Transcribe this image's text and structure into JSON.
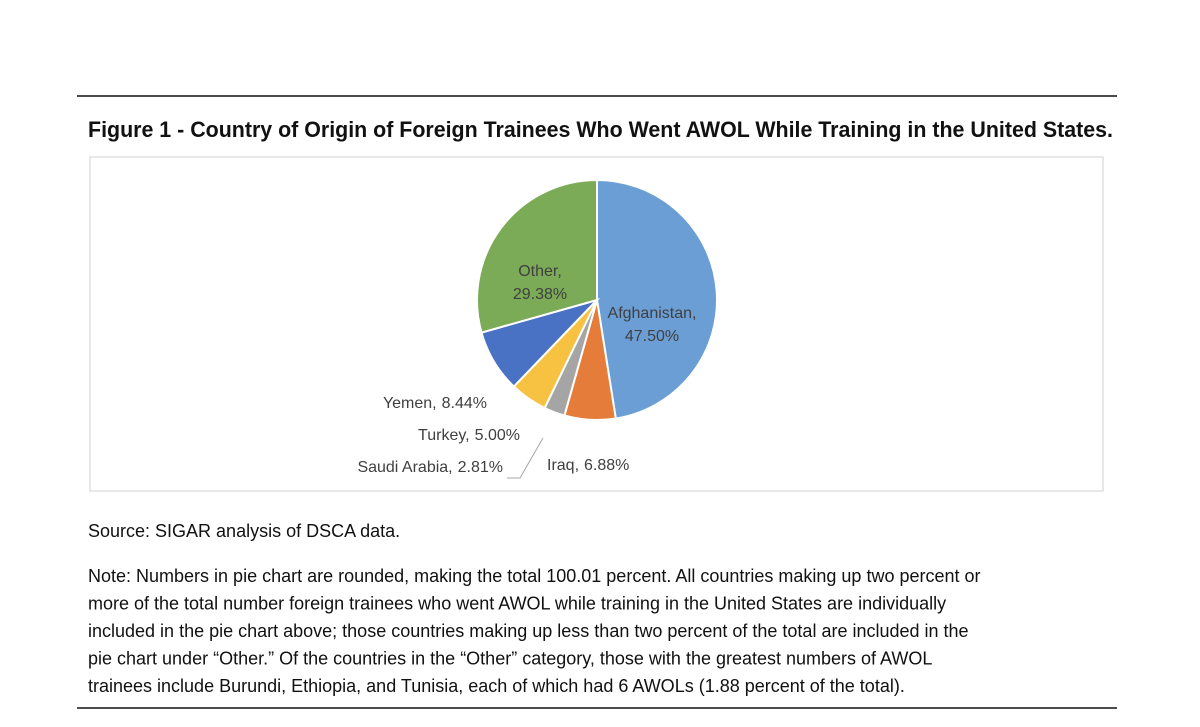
{
  "document": {
    "figure_title": "Figure 1 - Country of Origin of Foreign Trainees Who Went AWOL While Training in the United States.",
    "source": "Source: SIGAR analysis of DSCA data.",
    "note_lines": [
      "Note: Numbers in pie chart are rounded, making the total 100.01 percent. All countries making up two percent or",
      "more of the total number foreign trainees who went AWOL while training in the United States are individually",
      "included in the pie chart above; those countries making up less than two percent of the total are included in the",
      "pie chart under “Other.” Of the countries in the “Other” category, those with the greatest numbers of AWOL",
      "trainees include Burundi, Ethiopia, and Tunisia, each of which had 6 AWOLs (1.88 percent of the total)."
    ]
  },
  "chart_data": {
    "type": "pie",
    "label_separator": ",",
    "categories": [
      "Afghanistan",
      "Iraq",
      "Saudi Arabia",
      "Turkey",
      "Yemen",
      "Other"
    ],
    "values": [
      47.5,
      6.88,
      2.81,
      5.0,
      8.44,
      29.38
    ],
    "value_labels": [
      "47.50%",
      "6.88%",
      "2.81%",
      "5.00%",
      "8.44%",
      "29.38%"
    ],
    "colors": [
      "#6a9ed5",
      "#e57c3a",
      "#a5a5a5",
      "#f7c242",
      "#4a72c4",
      "#7bab56"
    ]
  }
}
